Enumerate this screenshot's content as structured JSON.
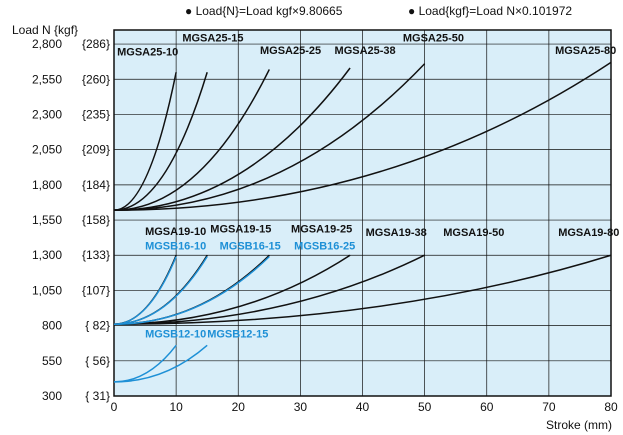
{
  "chart_data": {
    "type": "line",
    "title": "",
    "ylabel": "Load N {kgf}",
    "xlabel": "Stroke (mm)",
    "conversion_notes": [
      "● Load{N}=Load kgf×9.80665",
      "● Load{kgf}=Load N×0.101972"
    ],
    "xlim": [
      0,
      80
    ],
    "ylim": [
      300,
      2900
    ],
    "x_ticks": [
      0,
      10,
      20,
      30,
      40,
      50,
      60,
      70,
      80
    ],
    "y_ticks": [
      {
        "value": 300,
        "label": "300",
        "kgf": "{ 31}"
      },
      {
        "value": 550,
        "label": "550",
        "kgf": "{ 56}"
      },
      {
        "value": 800,
        "label": "800",
        "kgf": "{ 82}"
      },
      {
        "value": 1050,
        "label": "1,050",
        "kgf": "{107}"
      },
      {
        "value": 1300,
        "label": "1,300",
        "kgf": "{133}"
      },
      {
        "value": 1550,
        "label": "1,550",
        "kgf": "{158}"
      },
      {
        "value": 1800,
        "label": "1,800",
        "kgf": "{184}"
      },
      {
        "value": 2050,
        "label": "2,050",
        "kgf": "{209}"
      },
      {
        "value": 2300,
        "label": "2,300",
        "kgf": "{235}"
      },
      {
        "value": 2550,
        "label": "2,550",
        "kgf": "{260}"
      },
      {
        "value": 2800,
        "label": "2,800",
        "kgf": "{286}"
      }
    ],
    "grid": true,
    "series": [
      {
        "name": "MGSA25-10",
        "group": "MGSA25",
        "color": "#111111",
        "x0": 0,
        "y0": 1620,
        "x1": 10,
        "y1": 2600
      },
      {
        "name": "MGSA25-15",
        "group": "MGSA25",
        "color": "#111111",
        "x0": 0,
        "y0": 1620,
        "x1": 15,
        "y1": 2600
      },
      {
        "name": "MGSA25-25",
        "group": "MGSA25",
        "color": "#111111",
        "x0": 0,
        "y0": 1620,
        "x1": 25,
        "y1": 2620
      },
      {
        "name": "MGSA25-38",
        "group": "MGSA25",
        "color": "#111111",
        "x0": 0,
        "y0": 1620,
        "x1": 38,
        "y1": 2630
      },
      {
        "name": "MGSA25-50",
        "group": "MGSA25",
        "color": "#111111",
        "x0": 0,
        "y0": 1620,
        "x1": 50,
        "y1": 2660
      },
      {
        "name": "MGSA25-80",
        "group": "MGSA25",
        "color": "#111111",
        "x0": 0,
        "y0": 1620,
        "x1": 80,
        "y1": 2670
      },
      {
        "name": "MGSA19-10",
        "group": "MGSA19",
        "color": "#111111",
        "x0": 0,
        "y0": 810,
        "x1": 10,
        "y1": 1300
      },
      {
        "name": "MGSA19-15",
        "group": "MGSA19",
        "color": "#111111",
        "x0": 0,
        "y0": 810,
        "x1": 15,
        "y1": 1300
      },
      {
        "name": "MGSA19-25",
        "group": "MGSA19",
        "color": "#111111",
        "x0": 0,
        "y0": 810,
        "x1": 25,
        "y1": 1300
      },
      {
        "name": "MGSA19-38",
        "group": "MGSA19",
        "color": "#111111",
        "x0": 0,
        "y0": 810,
        "x1": 38,
        "y1": 1300
      },
      {
        "name": "MGSA19-50",
        "group": "MGSA19",
        "color": "#111111",
        "x0": 0,
        "y0": 810,
        "x1": 50,
        "y1": 1300
      },
      {
        "name": "MGSA19-80",
        "group": "MGSA19",
        "color": "#111111",
        "x0": 0,
        "y0": 810,
        "x1": 80,
        "y1": 1300
      },
      {
        "name": "MGSB16-10",
        "group": "MGSB16",
        "color": "#1e90d6",
        "x0": 0,
        "y0": 810,
        "x1": 10,
        "y1": 1290
      },
      {
        "name": "MGSB16-15",
        "group": "MGSB16",
        "color": "#1e90d6",
        "x0": 0,
        "y0": 810,
        "x1": 15,
        "y1": 1290
      },
      {
        "name": "MGSB16-25",
        "group": "MGSB16",
        "color": "#1e90d6",
        "x0": 0,
        "y0": 810,
        "x1": 25,
        "y1": 1290
      },
      {
        "name": "MGSB12-10",
        "group": "MGSB12",
        "color": "#1e90d6",
        "x0": 0,
        "y0": 400,
        "x1": 10,
        "y1": 660
      },
      {
        "name": "MGSB12-15",
        "group": "MGSB12",
        "color": "#1e90d6",
        "x0": 0,
        "y0": 400,
        "x1": 15,
        "y1": 660
      }
    ],
    "annotations": [
      {
        "text": "MGSA25-10",
        "x": 0.5,
        "y": 2720,
        "color": "#111111"
      },
      {
        "text": "MGSA25-15",
        "x": 11,
        "y": 2820,
        "color": "#111111"
      },
      {
        "text": "MGSA25-25",
        "x": 23.5,
        "y": 2730,
        "color": "#111111"
      },
      {
        "text": "MGSA25-38",
        "x": 35.5,
        "y": 2730,
        "color": "#111111"
      },
      {
        "text": "MGSA25-50",
        "x": 46.5,
        "y": 2820,
        "color": "#111111"
      },
      {
        "text": "MGSA25-80",
        "x": 71,
        "y": 2730,
        "color": "#111111"
      },
      {
        "text": "MGSA19-10",
        "x": 5,
        "y": 1445,
        "color": "#111111"
      },
      {
        "text": "MGSA19-15",
        "x": 15.5,
        "y": 1460,
        "color": "#111111"
      },
      {
        "text": "MGSA19-25",
        "x": 28.5,
        "y": 1460,
        "color": "#111111"
      },
      {
        "text": "MGSA19-38",
        "x": 40.5,
        "y": 1435,
        "color": "#111111"
      },
      {
        "text": "MGSA19-50",
        "x": 53,
        "y": 1435,
        "color": "#111111"
      },
      {
        "text": "MGSA19-80",
        "x": 71.5,
        "y": 1435,
        "color": "#111111"
      },
      {
        "text": "MGSB16-10",
        "x": 5,
        "y": 1340,
        "color": "#1e90d6"
      },
      {
        "text": "MGSB16-15",
        "x": 17,
        "y": 1340,
        "color": "#1e90d6"
      },
      {
        "text": "MGSB16-25",
        "x": 29,
        "y": 1340,
        "color": "#1e90d6"
      },
      {
        "text": "MGSB12-10",
        "x": 5,
        "y": 715,
        "color": "#1e90d6"
      },
      {
        "text": "MGSB12-15",
        "x": 15,
        "y": 715,
        "color": "#1e90d6"
      }
    ],
    "colors": {
      "plot_background": "#d9eef9",
      "grid": "#111111"
    }
  }
}
